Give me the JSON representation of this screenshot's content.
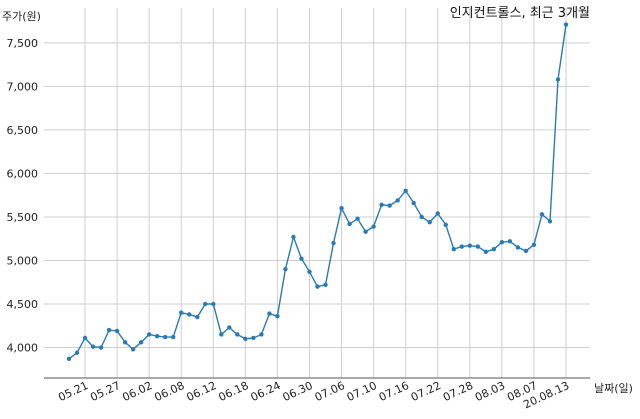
{
  "chart_data": {
    "type": "line",
    "title": "인지컨트롤스, 최근 3개월",
    "ylabel": "주가(원)",
    "xlabel": "날짜(일)",
    "ylim": [
      3650,
      7900
    ],
    "yticks": [
      4000,
      4500,
      5000,
      5500,
      6000,
      6500,
      7000,
      7500
    ],
    "ytick_labels": [
      "4,000",
      "4,500",
      "5,000",
      "5,500",
      "6,000",
      "6,500",
      "7,000",
      "7,500"
    ],
    "xtick_labels": [
      "05.21",
      "05.27",
      "06.02",
      "06.08",
      "06.12",
      "06.18",
      "06.24",
      "06.30",
      "07.06",
      "07.10",
      "07.16",
      "07.22",
      "07.28",
      "08.03",
      "08.07",
      "20.08.13"
    ],
    "xtick_index": [
      2,
      6,
      10,
      14,
      18,
      22,
      26,
      30,
      34,
      38,
      42,
      46,
      50,
      54,
      58,
      62
    ],
    "grid": true,
    "line_color": "#2a7ab4",
    "series": [
      {
        "name": "",
        "values": [
          3870,
          3940,
          4110,
          4010,
          4000,
          4200,
          4190,
          4060,
          3980,
          4060,
          4150,
          4130,
          4120,
          4120,
          4400,
          4380,
          4350,
          4500,
          4500,
          4150,
          4230,
          4150,
          4100,
          4110,
          4150,
          4390,
          4360,
          4900,
          5270,
          5020,
          4870,
          4700,
          4720,
          5200,
          5600,
          5420,
          5480,
          5330,
          5390,
          5640,
          5630,
          5690,
          5800,
          5660,
          5500,
          5440,
          5540,
          5410,
          5130,
          5160,
          5170,
          5160,
          5100,
          5130,
          5210,
          5220,
          5150,
          5110,
          5180,
          5530,
          5450,
          7080,
          7710
        ]
      }
    ]
  }
}
